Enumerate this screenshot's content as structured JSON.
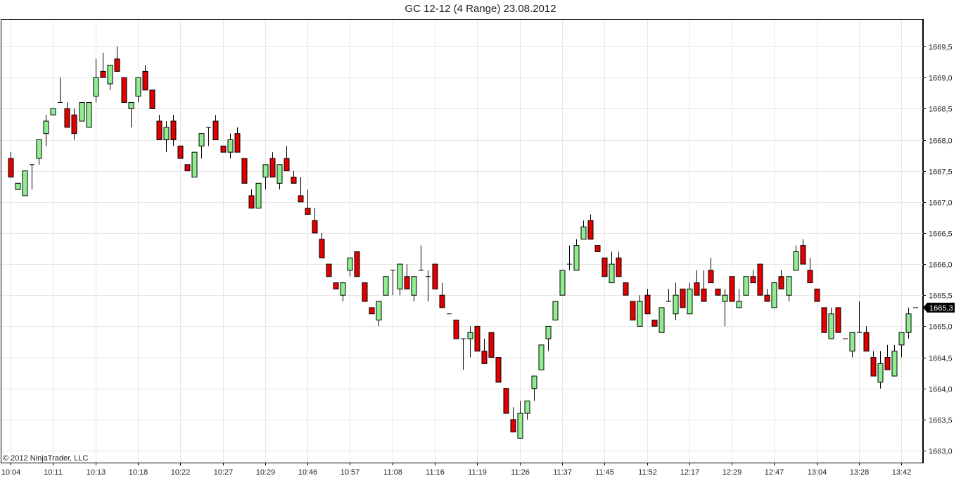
{
  "title": "GC 12-12 (4 Range)  23.08.2012",
  "copyright": "© 2012 NinjaTrader, LLC",
  "colors": {
    "up": "#90ee90",
    "down": "#e00000",
    "outline": "#000000",
    "grid": "#e6e6e6",
    "last_label_bg": "#000000"
  },
  "chart_data": {
    "type": "candlestick",
    "title": "GC 12-12 (4 Range)  23.08.2012",
    "ylim": [
      1662.9,
      1670.0
    ],
    "y_ticks": [
      "1663,0",
      "1663,5",
      "1664,0",
      "1664,5",
      "1665,0",
      "1665,5",
      "1666,0",
      "1666,5",
      "1667,0",
      "1667,5",
      "1668,0",
      "1668,5",
      "1669,0",
      "1669,5"
    ],
    "x_tick_labels": [
      "10:04",
      "10:11",
      "10:13",
      "10:18",
      "10:22",
      "10:27",
      "10:29",
      "10:46",
      "10:57",
      "11:08",
      "11:16",
      "11:19",
      "11:26",
      "11:37",
      "11:45",
      "11:52",
      "12:17",
      "12:29",
      "12:47",
      "13:04",
      "13:28",
      "13:42"
    ],
    "x_tick_every": 6,
    "last_price_label": "1665,3",
    "grid": true,
    "candles": [
      [
        1667.7,
        1667.4,
        1667.8,
        1667.4
      ],
      [
        1667.2,
        1667.3,
        1667.3,
        1667.2
      ],
      [
        1667.1,
        1667.5,
        1667.5,
        1667.1
      ],
      [
        1667.6,
        1667.6,
        1667.6,
        1667.2
      ],
      [
        1667.7,
        1668.0,
        1668.0,
        1667.6
      ],
      [
        1668.1,
        1668.3,
        1668.4,
        1667.9
      ],
      [
        1668.4,
        1668.5,
        1668.5,
        1668.4
      ],
      [
        1668.6,
        1668.6,
        1669.0,
        1668.6
      ],
      [
        1668.5,
        1668.2,
        1668.6,
        1668.2
      ],
      [
        1668.4,
        1668.1,
        1668.5,
        1668.0
      ],
      [
        1668.3,
        1668.6,
        1668.6,
        1668.3
      ],
      [
        1668.2,
        1668.6,
        1668.6,
        1668.2
      ],
      [
        1668.7,
        1669.0,
        1669.3,
        1668.6
      ],
      [
        1669.1,
        1669.0,
        1669.4,
        1669.0
      ],
      [
        1668.9,
        1669.2,
        1669.2,
        1668.8
      ],
      [
        1669.3,
        1669.1,
        1669.5,
        1669.1
      ],
      [
        1669.0,
        1668.6,
        1669.0,
        1668.6
      ],
      [
        1668.5,
        1668.6,
        1668.6,
        1668.2
      ],
      [
        1668.7,
        1669.0,
        1669.0,
        1668.6
      ],
      [
        1669.1,
        1668.8,
        1669.2,
        1668.8
      ],
      [
        1668.8,
        1668.5,
        1668.8,
        1668.5
      ],
      [
        1668.3,
        1668.0,
        1668.4,
        1668.0
      ],
      [
        1668.0,
        1668.2,
        1668.3,
        1667.8
      ],
      [
        1668.3,
        1668.0,
        1668.4,
        1667.9
      ],
      [
        1667.9,
        1667.7,
        1667.9,
        1667.7
      ],
      [
        1667.6,
        1667.5,
        1667.6,
        1667.5
      ],
      [
        1667.4,
        1667.8,
        1667.8,
        1667.4
      ],
      [
        1667.9,
        1668.1,
        1668.1,
        1667.7
      ],
      [
        1668.2,
        1668.2,
        1668.2,
        1667.9
      ],
      [
        1668.3,
        1668.0,
        1668.4,
        1668.0
      ],
      [
        1667.9,
        1667.8,
        1667.9,
        1667.8
      ],
      [
        1667.8,
        1668.0,
        1668.1,
        1667.7
      ],
      [
        1668.1,
        1667.8,
        1668.2,
        1667.8
      ],
      [
        1667.7,
        1667.3,
        1667.7,
        1667.3
      ],
      [
        1667.1,
        1666.9,
        1667.2,
        1666.9
      ],
      [
        1666.9,
        1667.3,
        1667.3,
        1666.9
      ],
      [
        1667.4,
        1667.6,
        1667.6,
        1667.2
      ],
      [
        1667.7,
        1667.4,
        1667.8,
        1667.4
      ],
      [
        1667.3,
        1667.6,
        1667.6,
        1667.2
      ],
      [
        1667.7,
        1667.5,
        1667.9,
        1667.5
      ],
      [
        1667.4,
        1667.3,
        1667.5,
        1667.3
      ],
      [
        1667.1,
        1667.0,
        1667.4,
        1667.0
      ],
      [
        1666.9,
        1666.8,
        1667.2,
        1666.8
      ],
      [
        1666.7,
        1666.5,
        1666.9,
        1666.5
      ],
      [
        1666.4,
        1666.1,
        1666.5,
        1666.1
      ],
      [
        1666.0,
        1665.8,
        1666.0,
        1665.8
      ],
      [
        1665.7,
        1665.6,
        1665.7,
        1665.6
      ],
      [
        1665.5,
        1665.7,
        1665.7,
        1665.4
      ],
      [
        1665.9,
        1666.1,
        1666.1,
        1665.8
      ],
      [
        1666.2,
        1665.8,
        1666.2,
        1665.8
      ],
      [
        1665.7,
        1665.4,
        1665.7,
        1665.4
      ],
      [
        1665.3,
        1665.2,
        1665.3,
        1665.2
      ],
      [
        1665.1,
        1665.4,
        1665.4,
        1665.0
      ],
      [
        1665.5,
        1665.8,
        1665.8,
        1665.5
      ],
      [
        1665.9,
        1665.9,
        1665.9,
        1665.5
      ],
      [
        1665.6,
        1666.0,
        1666.0,
        1665.5
      ],
      [
        1665.8,
        1665.6,
        1666.0,
        1665.6
      ],
      [
        1665.5,
        1665.8,
        1665.8,
        1665.4
      ],
      [
        1665.9,
        1665.9,
        1666.3,
        1665.9
      ],
      [
        1665.8,
        1665.8,
        1665.9,
        1665.4
      ],
      [
        1666.0,
        1665.6,
        1666.0,
        1665.6
      ],
      [
        1665.5,
        1665.3,
        1665.7,
        1665.3
      ],
      [
        1665.2,
        1665.2,
        1665.2,
        1665.2
      ],
      [
        1665.1,
        1664.8,
        1665.1,
        1664.8
      ],
      [
        1664.8,
        1664.8,
        1664.8,
        1664.3
      ],
      [
        1664.8,
        1664.9,
        1665.0,
        1664.5
      ],
      [
        1665.0,
        1664.6,
        1665.0,
        1664.6
      ],
      [
        1664.6,
        1664.4,
        1664.8,
        1664.4
      ],
      [
        1664.9,
        1664.5,
        1664.9,
        1664.5
      ],
      [
        1664.5,
        1664.1,
        1664.5,
        1664.1
      ],
      [
        1664.0,
        1663.6,
        1664.0,
        1663.6
      ],
      [
        1663.5,
        1663.3,
        1663.7,
        1663.3
      ],
      [
        1663.2,
        1663.6,
        1663.8,
        1663.2
      ],
      [
        1663.6,
        1663.8,
        1663.8,
        1663.5
      ],
      [
        1664.0,
        1664.2,
        1664.2,
        1663.8
      ],
      [
        1664.3,
        1664.7,
        1664.7,
        1664.3
      ],
      [
        1664.8,
        1665.0,
        1665.0,
        1664.6
      ],
      [
        1665.1,
        1665.4,
        1665.4,
        1665.1
      ],
      [
        1665.5,
        1665.9,
        1665.9,
        1665.5
      ],
      [
        1666.0,
        1666.0,
        1666.3,
        1665.9
      ],
      [
        1665.9,
        1666.3,
        1666.4,
        1665.9
      ],
      [
        1666.4,
        1666.6,
        1666.7,
        1666.4
      ],
      [
        1666.7,
        1666.4,
        1666.8,
        1666.4
      ],
      [
        1666.3,
        1666.2,
        1666.3,
        1666.2
      ],
      [
        1666.1,
        1665.8,
        1666.1,
        1665.8
      ],
      [
        1665.7,
        1666.0,
        1666.2,
        1665.7
      ],
      [
        1666.1,
        1665.8,
        1666.2,
        1665.8
      ],
      [
        1665.7,
        1665.5,
        1665.7,
        1665.5
      ],
      [
        1665.4,
        1665.1,
        1665.4,
        1665.1
      ],
      [
        1665.0,
        1665.4,
        1665.5,
        1665.0
      ],
      [
        1665.5,
        1665.2,
        1665.6,
        1665.2
      ],
      [
        1665.1,
        1665.0,
        1665.1,
        1665.0
      ],
      [
        1664.9,
        1665.3,
        1665.3,
        1664.9
      ],
      [
        1665.4,
        1665.4,
        1665.6,
        1665.4
      ],
      [
        1665.2,
        1665.5,
        1665.7,
        1665.1
      ],
      [
        1665.6,
        1665.3,
        1665.6,
        1665.3
      ],
      [
        1665.2,
        1665.6,
        1665.7,
        1665.2
      ],
      [
        1665.7,
        1665.5,
        1665.9,
        1665.5
      ],
      [
        1665.6,
        1665.4,
        1665.9,
        1665.4
      ],
      [
        1665.9,
        1665.7,
        1666.1,
        1665.7
      ],
      [
        1665.6,
        1665.5,
        1665.6,
        1665.5
      ],
      [
        1665.4,
        1665.5,
        1665.6,
        1665.0
      ],
      [
        1665.8,
        1665.4,
        1665.8,
        1665.4
      ],
      [
        1665.3,
        1665.4,
        1665.6,
        1665.3
      ],
      [
        1665.5,
        1665.8,
        1665.8,
        1665.5
      ],
      [
        1665.8,
        1665.7,
        1665.9,
        1665.7
      ],
      [
        1666.0,
        1665.5,
        1666.0,
        1665.5
      ],
      [
        1665.5,
        1665.4,
        1665.6,
        1665.4
      ],
      [
        1665.3,
        1665.7,
        1665.7,
        1665.3
      ],
      [
        1665.8,
        1665.6,
        1665.9,
        1665.6
      ],
      [
        1665.5,
        1665.8,
        1665.8,
        1665.4
      ],
      [
        1665.9,
        1666.2,
        1666.3,
        1665.9
      ],
      [
        1666.3,
        1666.0,
        1666.4,
        1666.0
      ],
      [
        1665.9,
        1665.7,
        1666.1,
        1665.7
      ],
      [
        1665.6,
        1665.4,
        1665.6,
        1665.4
      ],
      [
        1665.3,
        1664.9,
        1665.3,
        1664.9
      ],
      [
        1664.8,
        1665.2,
        1665.3,
        1664.8
      ],
      [
        1665.3,
        1664.9,
        1665.3,
        1664.9
      ],
      [
        1664.8,
        1664.8,
        1664.8,
        1664.8
      ],
      [
        1664.6,
        1664.9,
        1664.9,
        1664.5
      ],
      [
        1664.9,
        1664.9,
        1665.4,
        1664.9
      ],
      [
        1664.9,
        1664.6,
        1665.0,
        1664.6
      ],
      [
        1664.5,
        1664.2,
        1664.6,
        1664.2
      ],
      [
        1664.1,
        1664.4,
        1664.6,
        1664.0
      ],
      [
        1664.5,
        1664.3,
        1664.7,
        1664.3
      ],
      [
        1664.2,
        1664.6,
        1664.7,
        1664.2
      ],
      [
        1664.7,
        1664.9,
        1664.9,
        1664.5
      ],
      [
        1664.9,
        1665.2,
        1665.3,
        1664.8
      ],
      [
        1665.3,
        1665.3,
        1665.3,
        1665.3
      ]
    ]
  }
}
